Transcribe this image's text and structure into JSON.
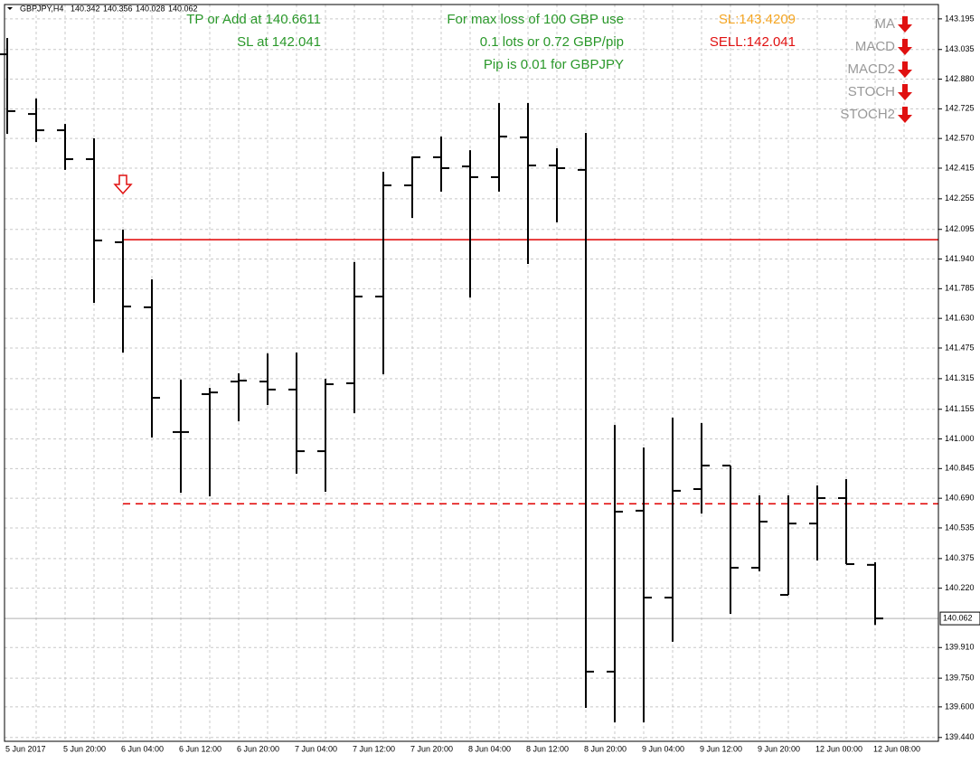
{
  "chart_data": {
    "type": "ohlc",
    "symbol": "GBPJPY,H4",
    "categories": [
      "5 Jun 2017",
      null,
      "5 Jun 20:00",
      null,
      "6 Jun 04:00",
      null,
      "6 Jun 12:00",
      null,
      "6 Jun 20:00",
      null,
      "7 Jun 04:00",
      null,
      "7 Jun 12:00",
      null,
      "7 Jun 20:00",
      null,
      "8 Jun 04:00",
      null,
      "8 Jun 12:00",
      null,
      "8 Jun 20:00",
      null,
      "9 Jun 04:00",
      null,
      "9 Jun 12:00",
      null,
      "9 Jun 20:00",
      null,
      "12 Jun 00:00",
      null,
      "12 Jun 08:00"
    ],
    "open": [
      143.01,
      142.698,
      142.613,
      142.462,
      142.028,
      141.688,
      141.036,
      141.234,
      141.3,
      141.3,
      141.258,
      140.936,
      141.291,
      141.744,
      142.325,
      142.472,
      142.424,
      142.368,
      142.576,
      142.429,
      142.406,
      139.784,
      140.625,
      140.171,
      140.738,
      140.861,
      140.327,
      140.185,
      140.558,
      140.691,
      140.342
    ],
    "high": [
      143.095,
      142.779,
      142.646,
      142.571,
      142.094,
      141.834,
      141.31,
      141.267,
      141.343,
      141.447,
      141.451,
      141.314,
      141.924,
      142.396,
      142.476,
      142.58,
      142.509,
      142.755,
      142.755,
      142.519,
      142.599,
      141.073,
      140.955,
      141.111,
      141.083,
      140.861,
      140.705,
      140.705,
      140.757,
      140.79,
      140.356
    ],
    "low": [
      142.594,
      142.552,
      142.406,
      141.711,
      141.451,
      141.007,
      140.719,
      140.7,
      141.092,
      141.177,
      140.818,
      140.724,
      141.135,
      141.338,
      142.155,
      142.292,
      141.739,
      142.292,
      141.914,
      142.132,
      139.595,
      139.519,
      139.519,
      139.94,
      140.61,
      140.086,
      140.308,
      140.185,
      140.365,
      140.346,
      140.028
    ],
    "close": [
      142.713,
      142.613,
      142.462,
      142.037,
      141.692,
      141.215,
      141.036,
      141.243,
      141.305,
      141.258,
      140.936,
      141.286,
      141.744,
      142.325,
      142.472,
      142.415,
      142.368,
      142.58,
      142.429,
      142.415,
      139.784,
      140.62,
      140.171,
      140.729,
      140.861,
      140.327,
      140.568,
      140.558,
      140.691,
      140.346,
      140.062
    ],
    "color": "#000000",
    "ylim": [
      139.42,
      143.27
    ],
    "yticks": [
      143.195,
      143.035,
      {
        "value": 142.88,
        "label": "142.880"
      },
      142.725,
      {
        "value": 142.57,
        "label": "142.570"
      },
      142.415,
      142.255,
      142.095,
      {
        "value": 141.94,
        "label": "141.940"
      },
      141.785,
      {
        "value": 141.63,
        "label": "141.630"
      },
      141.475,
      141.315,
      141.155,
      {
        "value": 141.0,
        "label": "141.000"
      },
      140.845,
      {
        "value": 140.69,
        "label": "140.690"
      },
      140.535,
      140.375,
      {
        "value": 140.22,
        "label": "140.220"
      },
      {
        "value": 139.91,
        "label": "139.910"
      },
      {
        "value": 139.75,
        "label": "139.750"
      },
      {
        "value": 139.6,
        "label": "139.600"
      },
      {
        "value": 139.44,
        "label": "139.440"
      }
    ],
    "grid": true,
    "bid": 140.062,
    "signal_index": 4,
    "hlines": [
      {
        "value": 142.041,
        "color": "#e00000",
        "style": "solid"
      },
      {
        "value": 140.6611,
        "color": "#e00000",
        "style": "dashed"
      }
    ],
    "annotations": {
      "tp": "TP or Add at 140.6611",
      "sl": "SL at 142.041",
      "risk": "For max loss of 100 GBP use",
      "lots": "0.1 lots or 0.72 GBP/pip",
      "pip": "Pip is 0.01 for GBPJPY",
      "sl_price": "SL:143.4209",
      "sell": "SELL:142.041"
    },
    "indicators": [
      "MA",
      "MACD",
      "MACD2",
      "STOCH",
      "STOCH2"
    ]
  }
}
